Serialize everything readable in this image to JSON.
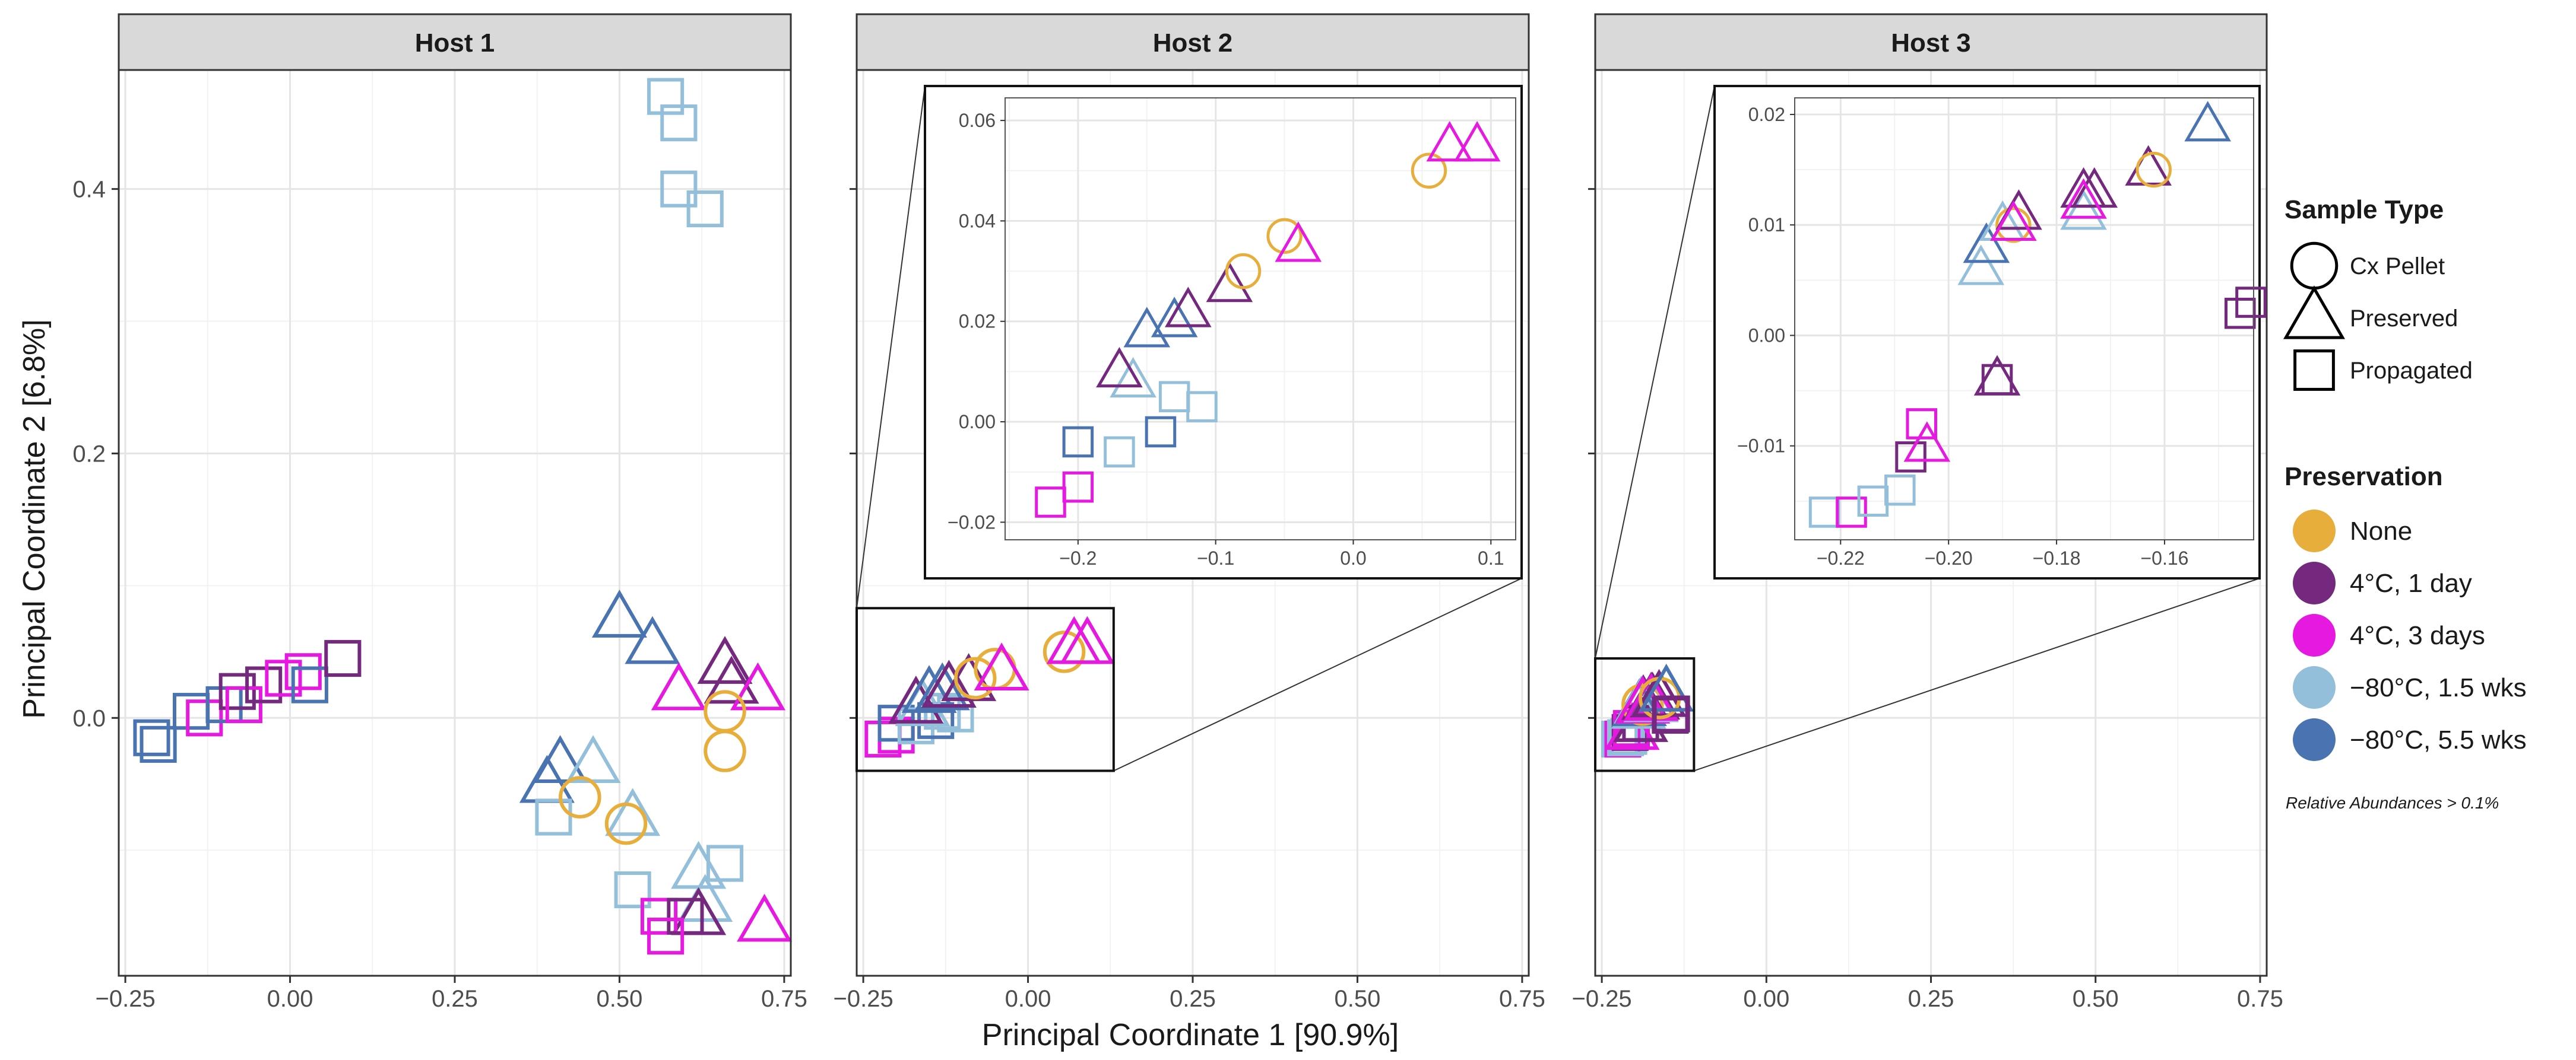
{
  "colors": {
    "None": "#E8AE3C",
    "4°C, 1 day": "#74297E",
    "4°C, 3 days": "#E619E0",
    "−80°C, 1.5 wks": "#93BFDB",
    "−80°C, 5.5 wks": "#4A73B1"
  },
  "shapes": {
    "Cx Pellet": "circle",
    "Preserved": "triangle",
    "Propagated": "square"
  },
  "labels": {
    "xlabel": "Principal Coordinate 1 [90.9%]",
    "ylabel": "Principal Coordinate 2 [6.8%]",
    "caption": "Relative Abundances > 0.1%"
  },
  "legend": {
    "shape_title": "Sample Type",
    "shape_items": [
      {
        "label": "Cx Pellet",
        "shape": "circle"
      },
      {
        "label": "Preserved",
        "shape": "triangle"
      },
      {
        "label": "Propagated",
        "shape": "square"
      }
    ],
    "color_title": "Preservation",
    "color_items": [
      {
        "label": "None"
      },
      {
        "label": "4°C, 1 day"
      },
      {
        "label": "4°C, 3 days"
      },
      {
        "label": "−80°C, 1.5 wks"
      },
      {
        "label": "−80°C, 5.5 wks"
      }
    ]
  },
  "chart_data": [
    {
      "type": "scatter",
      "title": "Host 1",
      "xlim": [
        -0.26,
        0.76
      ],
      "ylim": [
        -0.195,
        0.49
      ],
      "xticks": [
        -0.25,
        0.0,
        0.25,
        0.5,
        0.75
      ],
      "xtick_labels": [
        "−0.25",
        "0.00",
        "0.25",
        "0.50",
        "0.75"
      ],
      "yticks": [
        0.0,
        0.2,
        0.4
      ],
      "ytick_labels": [
        "0.0",
        "0.2",
        "0.4"
      ],
      "points": [
        {
          "x": -0.21,
          "y": -0.015,
          "shape": "square",
          "group": "−80°C, 5.5 wks"
        },
        {
          "x": -0.2,
          "y": -0.02,
          "shape": "square",
          "group": "−80°C, 5.5 wks"
        },
        {
          "x": -0.15,
          "y": 0.005,
          "shape": "square",
          "group": "−80°C, 5.5 wks"
        },
        {
          "x": -0.13,
          "y": 0.0,
          "shape": "square",
          "group": "4°C, 3 days"
        },
        {
          "x": -0.1,
          "y": 0.01,
          "shape": "square",
          "group": "−80°C, 5.5 wks"
        },
        {
          "x": -0.08,
          "y": 0.02,
          "shape": "square",
          "group": "4°C, 1 day"
        },
        {
          "x": -0.07,
          "y": 0.01,
          "shape": "square",
          "group": "4°C, 3 days"
        },
        {
          "x": -0.04,
          "y": 0.025,
          "shape": "square",
          "group": "4°C, 1 day"
        },
        {
          "x": -0.01,
          "y": 0.03,
          "shape": "square",
          "group": "4°C, 3 days"
        },
        {
          "x": 0.02,
          "y": 0.035,
          "shape": "square",
          "group": "4°C, 3 days"
        },
        {
          "x": 0.03,
          "y": 0.025,
          "shape": "square",
          "group": "−80°C, 5.5 wks"
        },
        {
          "x": 0.08,
          "y": 0.045,
          "shape": "square",
          "group": "4°C, 1 day"
        },
        {
          "x": 0.57,
          "y": 0.47,
          "shape": "square",
          "group": "−80°C, 1.5 wks"
        },
        {
          "x": 0.59,
          "y": 0.45,
          "shape": "square",
          "group": "−80°C, 1.5 wks"
        },
        {
          "x": 0.59,
          "y": 0.4,
          "shape": "square",
          "group": "−80°C, 1.5 wks"
        },
        {
          "x": 0.63,
          "y": 0.385,
          "shape": "square",
          "group": "−80°C, 1.5 wks"
        },
        {
          "x": 0.5,
          "y": 0.075,
          "shape": "triangle",
          "group": "−80°C, 5.5 wks"
        },
        {
          "x": 0.55,
          "y": 0.055,
          "shape": "triangle",
          "group": "−80°C, 5.5 wks"
        },
        {
          "x": 0.66,
          "y": 0.04,
          "shape": "triangle",
          "group": "4°C, 1 day"
        },
        {
          "x": 0.67,
          "y": 0.025,
          "shape": "triangle",
          "group": "4°C, 1 day"
        },
        {
          "x": 0.59,
          "y": 0.02,
          "shape": "triangle",
          "group": "4°C, 3 days"
        },
        {
          "x": 0.71,
          "y": 0.02,
          "shape": "triangle",
          "group": "4°C, 3 days"
        },
        {
          "x": 0.66,
          "y": 0.005,
          "shape": "circle",
          "group": "None"
        },
        {
          "x": 0.66,
          "y": -0.025,
          "shape": "circle",
          "group": "None"
        },
        {
          "x": 0.41,
          "y": -0.035,
          "shape": "triangle",
          "group": "−80°C, 5.5 wks"
        },
        {
          "x": 0.39,
          "y": -0.05,
          "shape": "triangle",
          "group": "−80°C, 5.5 wks"
        },
        {
          "x": 0.46,
          "y": -0.035,
          "shape": "triangle",
          "group": "−80°C, 1.5 wks"
        },
        {
          "x": 0.4,
          "y": -0.075,
          "shape": "square",
          "group": "−80°C, 1.5 wks"
        },
        {
          "x": 0.44,
          "y": -0.06,
          "shape": "circle",
          "group": "None"
        },
        {
          "x": 0.52,
          "y": -0.075,
          "shape": "triangle",
          "group": "−80°C, 1.5 wks"
        },
        {
          "x": 0.51,
          "y": -0.08,
          "shape": "circle",
          "group": "None"
        },
        {
          "x": 0.62,
          "y": -0.115,
          "shape": "triangle",
          "group": "−80°C, 1.5 wks"
        },
        {
          "x": 0.66,
          "y": -0.11,
          "shape": "square",
          "group": "−80°C, 1.5 wks"
        },
        {
          "x": 0.52,
          "y": -0.13,
          "shape": "square",
          "group": "−80°C, 1.5 wks"
        },
        {
          "x": 0.63,
          "y": -0.14,
          "shape": "triangle",
          "group": "−80°C, 1.5 wks"
        },
        {
          "x": 0.62,
          "y": -0.15,
          "shape": "triangle",
          "group": "4°C, 1 day"
        },
        {
          "x": 0.56,
          "y": -0.15,
          "shape": "square",
          "group": "4°C, 3 days"
        },
        {
          "x": 0.6,
          "y": -0.15,
          "shape": "square",
          "group": "4°C, 1 day"
        },
        {
          "x": 0.57,
          "y": -0.165,
          "shape": "square",
          "group": "4°C, 3 days"
        },
        {
          "x": 0.72,
          "y": -0.155,
          "shape": "triangle",
          "group": "4°C, 3 days"
        }
      ]
    },
    {
      "type": "scatter",
      "title": "Host 2",
      "xlim": [
        -0.26,
        0.76
      ],
      "ylim": [
        -0.195,
        0.49
      ],
      "xticks": [
        -0.25,
        0.0,
        0.25,
        0.5,
        0.75
      ],
      "xtick_labels": [
        "−0.25",
        "0.00",
        "0.25",
        "0.50",
        "0.75"
      ],
      "yticks": [
        0.0,
        0.2,
        0.4
      ],
      "points": [
        {
          "x": -0.22,
          "y": -0.016,
          "shape": "square",
          "group": "4°C, 3 days"
        },
        {
          "x": -0.2,
          "y": -0.013,
          "shape": "square",
          "group": "4°C, 3 days"
        },
        {
          "x": -0.2,
          "y": -0.004,
          "shape": "square",
          "group": "−80°C, 5.5 wks"
        },
        {
          "x": -0.17,
          "y": -0.006,
          "shape": "square",
          "group": "−80°C, 1.5 wks"
        },
        {
          "x": -0.14,
          "y": -0.002,
          "shape": "square",
          "group": "−80°C, 5.5 wks"
        },
        {
          "x": -0.11,
          "y": 0.003,
          "shape": "square",
          "group": "−80°C, 1.5 wks"
        },
        {
          "x": -0.13,
          "y": 0.005,
          "shape": "square",
          "group": "−80°C, 1.5 wks"
        },
        {
          "x": -0.16,
          "y": 0.008,
          "shape": "triangle",
          "group": "−80°C, 1.5 wks"
        },
        {
          "x": -0.17,
          "y": 0.01,
          "shape": "triangle",
          "group": "4°C, 1 day"
        },
        {
          "x": -0.15,
          "y": 0.018,
          "shape": "triangle",
          "group": "−80°C, 5.5 wks"
        },
        {
          "x": -0.13,
          "y": 0.02,
          "shape": "triangle",
          "group": "−80°C, 5.5 wks"
        },
        {
          "x": -0.12,
          "y": 0.022,
          "shape": "triangle",
          "group": "4°C, 1 day"
        },
        {
          "x": -0.09,
          "y": 0.027,
          "shape": "triangle",
          "group": "4°C, 1 day"
        },
        {
          "x": -0.08,
          "y": 0.03,
          "shape": "circle",
          "group": "None"
        },
        {
          "x": -0.05,
          "y": 0.037,
          "shape": "circle",
          "group": "None"
        },
        {
          "x": -0.04,
          "y": 0.035,
          "shape": "triangle",
          "group": "4°C, 3 days"
        },
        {
          "x": 0.055,
          "y": 0.05,
          "shape": "circle",
          "group": "None"
        },
        {
          "x": 0.07,
          "y": 0.055,
          "shape": "triangle",
          "group": "4°C, 3 days"
        },
        {
          "x": 0.09,
          "y": 0.055,
          "shape": "triangle",
          "group": "4°C, 3 days"
        }
      ],
      "inset": {
        "xlim": [
          -0.253,
          0.118
        ],
        "ylim": [
          -0.0235,
          0.0645
        ],
        "xticks": [
          -0.2,
          -0.1,
          0.0,
          0.1
        ],
        "xtick_labels": [
          "−0.2",
          "−0.1",
          "0.0",
          "0.1"
        ],
        "yticks": [
          -0.02,
          0.0,
          0.02,
          0.04,
          0.06
        ],
        "ytick_labels": [
          "−0.02",
          "0.00",
          "0.02",
          "0.04",
          "0.06"
        ],
        "zoom_box": {
          "xmin": -0.26,
          "xmax": 0.13,
          "ymin": -0.04,
          "ymax": 0.083
        }
      }
    },
    {
      "type": "scatter",
      "title": "Host 3",
      "xlim": [
        -0.26,
        0.76
      ],
      "ylim": [
        -0.195,
        0.49
      ],
      "xticks": [
        -0.25,
        0.0,
        0.25,
        0.5,
        0.75
      ],
      "xtick_labels": [
        "−0.25",
        "0.00",
        "0.25",
        "0.50",
        "0.75"
      ],
      "yticks": [
        0.0,
        0.2,
        0.4
      ],
      "points": [
        {
          "x": -0.223,
          "y": -0.016,
          "shape": "square",
          "group": "−80°C, 1.5 wks"
        },
        {
          "x": -0.218,
          "y": -0.016,
          "shape": "square",
          "group": "4°C, 3 days"
        },
        {
          "x": -0.214,
          "y": -0.015,
          "shape": "square",
          "group": "−80°C, 1.5 wks"
        },
        {
          "x": -0.209,
          "y": -0.014,
          "shape": "square",
          "group": "−80°C, 1.5 wks"
        },
        {
          "x": -0.207,
          "y": -0.011,
          "shape": "square",
          "group": "4°C, 1 day"
        },
        {
          "x": -0.205,
          "y": -0.008,
          "shape": "square",
          "group": "4°C, 3 days"
        },
        {
          "x": -0.204,
          "y": -0.01,
          "shape": "triangle",
          "group": "4°C, 3 days"
        },
        {
          "x": -0.191,
          "y": -0.004,
          "shape": "square",
          "group": "4°C, 1 day"
        },
        {
          "x": -0.191,
          "y": -0.004,
          "shape": "triangle",
          "group": "4°C, 1 day"
        },
        {
          "x": -0.194,
          "y": 0.006,
          "shape": "triangle",
          "group": "−80°C, 1.5 wks"
        },
        {
          "x": -0.193,
          "y": 0.008,
          "shape": "triangle",
          "group": "−80°C, 5.5 wks"
        },
        {
          "x": -0.19,
          "y": 0.01,
          "shape": "triangle",
          "group": "−80°C, 1.5 wks"
        },
        {
          "x": -0.188,
          "y": 0.01,
          "shape": "circle",
          "group": "None"
        },
        {
          "x": -0.187,
          "y": 0.011,
          "shape": "triangle",
          "group": "4°C, 1 day"
        },
        {
          "x": -0.188,
          "y": 0.01,
          "shape": "triangle",
          "group": "4°C, 3 days"
        },
        {
          "x": -0.175,
          "y": 0.011,
          "shape": "triangle",
          "group": "−80°C, 1.5 wks"
        },
        {
          "x": -0.175,
          "y": 0.013,
          "shape": "triangle",
          "group": "4°C, 1 day"
        },
        {
          "x": -0.173,
          "y": 0.013,
          "shape": "triangle",
          "group": "4°C, 1 day"
        },
        {
          "x": -0.175,
          "y": 0.012,
          "shape": "triangle",
          "group": "4°C, 3 days"
        },
        {
          "x": -0.163,
          "y": 0.015,
          "shape": "triangle",
          "group": "4°C, 1 day"
        },
        {
          "x": -0.162,
          "y": 0.015,
          "shape": "circle",
          "group": "None"
        },
        {
          "x": -0.152,
          "y": 0.019,
          "shape": "triangle",
          "group": "−80°C, 5.5 wks"
        },
        {
          "x": -0.146,
          "y": 0.002,
          "shape": "square",
          "group": "4°C, 1 day"
        },
        {
          "x": -0.144,
          "y": 0.003,
          "shape": "square",
          "group": "4°C, 1 day"
        }
      ],
      "inset": {
        "xlim": [
          -0.2285,
          -0.1435
        ],
        "ylim": [
          -0.0185,
          0.0215
        ],
        "xticks": [
          -0.22,
          -0.2,
          -0.18,
          -0.16
        ],
        "xtick_labels": [
          "−0.22",
          "−0.20",
          "−0.18",
          "−0.16"
        ],
        "yticks": [
          -0.01,
          0.0,
          0.01,
          0.02
        ],
        "ytick_labels": [
          "−0.01",
          "0.00",
          "0.01",
          "0.02"
        ],
        "zoom_box": {
          "xmin": -0.26,
          "xmax": -0.11,
          "ymin": -0.04,
          "ymax": 0.045
        }
      }
    }
  ]
}
